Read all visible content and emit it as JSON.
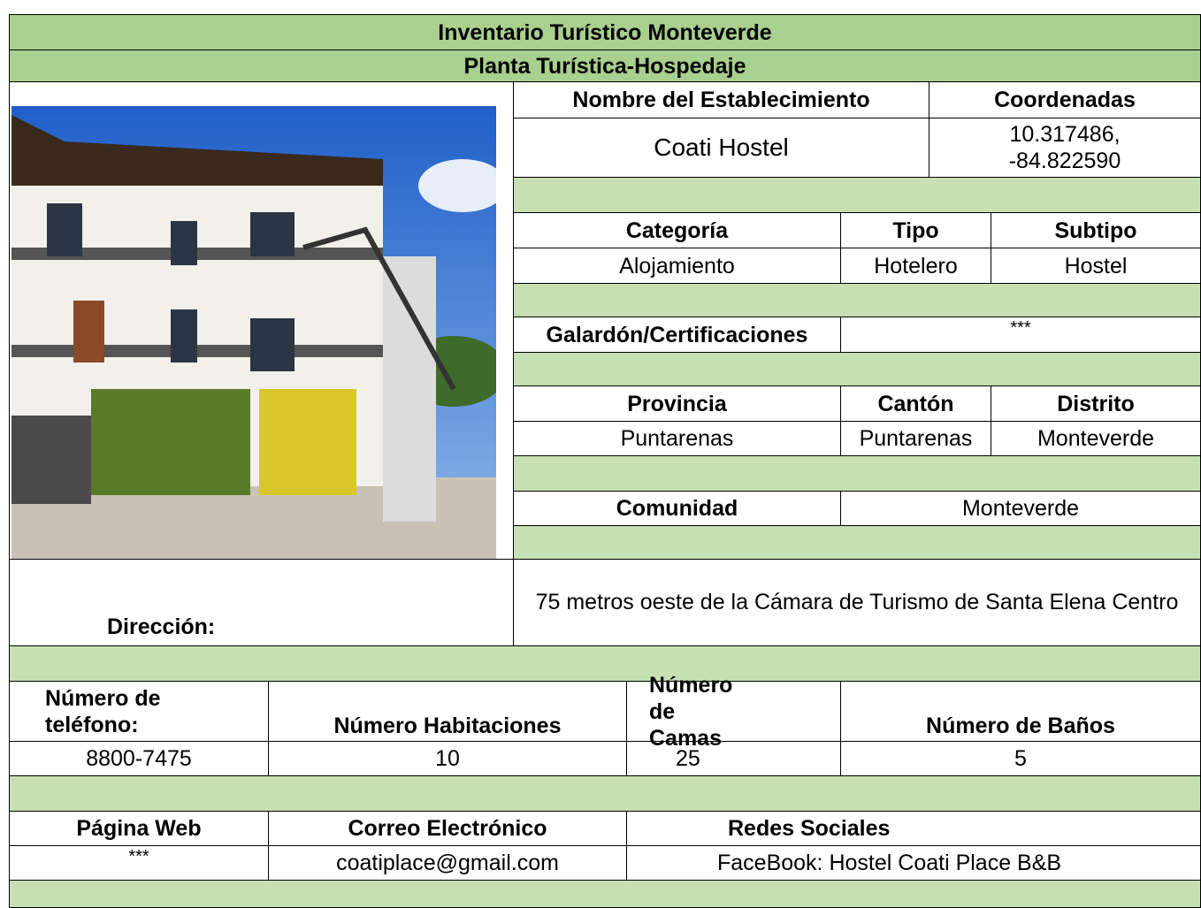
{
  "header": {
    "title": "Inventario Turístico Monteverde",
    "subtitle": "Planta Turística-Hospedaje"
  },
  "establishment": {
    "name_label": "Nombre del Establecimiento",
    "name": "Coati Hostel",
    "coord_label": "Coordenadas",
    "coordinates": "10.317486, -84.822590"
  },
  "classification": {
    "category_label": "Categoría",
    "type_label": "Tipo",
    "subtype_label": "Subtipo",
    "category": "Alojamiento",
    "type": "Hotelero",
    "subtype": "Hostel"
  },
  "award": {
    "label": "Galardón/Certificaciones",
    "value": "***"
  },
  "location": {
    "province_label": "Provincia",
    "canton_label": "Cantón",
    "district_label": "Distrito",
    "province": "Puntarenas",
    "canton": "Puntarenas",
    "district": "Monteverde",
    "community_label": "Comunidad",
    "community": "Monteverde"
  },
  "address": {
    "label": "Dirección:",
    "value": "75 metros oeste de la Cámara de Turismo de Santa Elena Centro"
  },
  "capacity": {
    "phone_label": "Número de teléfono:",
    "rooms_label": "Número Habitaciones",
    "beds_label": "Número de Camas",
    "baths_label": "Número de Baños",
    "phone": "8800-7475",
    "rooms": "10",
    "beds": "25",
    "baths": "5"
  },
  "contact": {
    "web_label": "Página Web",
    "email_label": "Correo Electrónico",
    "social_label": "Redes Sociales",
    "web": "***",
    "email": "coatiplace@gmail.com",
    "social": "FaceBook: Hostel Coati Place B&B"
  }
}
